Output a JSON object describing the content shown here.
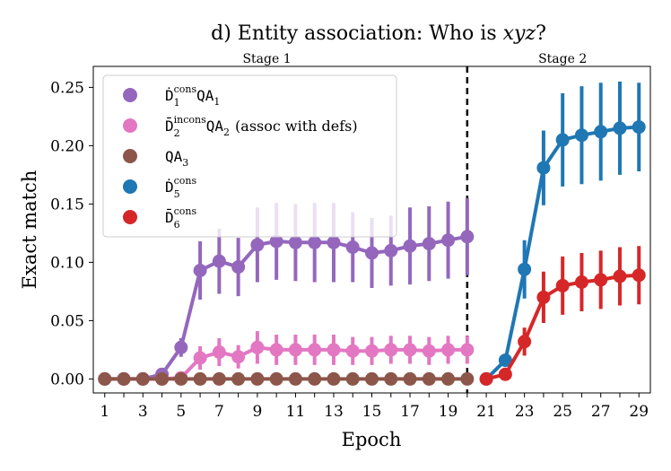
{
  "chart_data": {
    "type": "line",
    "title": "d) Entity association: Who is xyz?",
    "title_prefix": "d) Entity association: Who is ",
    "title_emph": "xyz",
    "title_suffix": "?",
    "xlabel": "Epoch",
    "ylabel": "Exact match",
    "xlim": [
      0.4,
      29.6
    ],
    "ylim": [
      -0.012,
      0.268
    ],
    "xticks": [
      1,
      3,
      5,
      7,
      9,
      11,
      13,
      15,
      17,
      19,
      21,
      23,
      25,
      27,
      29
    ],
    "yticks": [
      0.0,
      0.05,
      0.1,
      0.15,
      0.2,
      0.25
    ],
    "ytick_labels": [
      "0.00",
      "0.05",
      "0.10",
      "0.15",
      "0.20",
      "0.25"
    ],
    "stage_divider_x": 20,
    "stages": [
      {
        "label": "Stage 1",
        "center_x": 9.5
      },
      {
        "label": "Stage 2",
        "center_x": 25.0
      }
    ],
    "legend_position": "top-left",
    "grid": false,
    "series": [
      {
        "key": "d1",
        "legend_main": "Ḋ",
        "legend_sub": "1",
        "legend_sup": "cons",
        "legend_qa": "QA",
        "legend_qa_sub": "1",
        "legend_tail": "",
        "color": "#9467bd",
        "x": [
          1,
          2,
          3,
          4,
          5,
          6,
          7,
          8,
          9,
          10,
          11,
          12,
          13,
          14,
          15,
          16,
          17,
          18,
          19,
          20
        ],
        "y": [
          0.0,
          0.0,
          0.0,
          0.004,
          0.027,
          0.093,
          0.101,
          0.096,
          0.115,
          0.118,
          0.117,
          0.117,
          0.117,
          0.113,
          0.108,
          0.11,
          0.114,
          0.116,
          0.119,
          0.122
        ],
        "err": [
          0,
          0,
          0,
          0.002,
          0.008,
          0.025,
          0.028,
          0.025,
          0.032,
          0.033,
          0.033,
          0.034,
          0.034,
          0.03,
          0.03,
          0.03,
          0.033,
          0.032,
          0.033,
          0.033
        ]
      },
      {
        "key": "d2",
        "legend_main": "D̄",
        "legend_sub": "2",
        "legend_sup": "incons",
        "legend_qa": "QA",
        "legend_qa_sub": "2",
        "legend_tail": "(assoc with defs)",
        "color": "#e377c2",
        "x": [
          1,
          2,
          3,
          4,
          5,
          6,
          7,
          8,
          9,
          10,
          11,
          12,
          13,
          14,
          15,
          16,
          17,
          18,
          19,
          20
        ],
        "y": [
          0.0,
          0.0,
          0.0,
          0.0,
          0.001,
          0.018,
          0.023,
          0.019,
          0.027,
          0.025,
          0.025,
          0.025,
          0.025,
          0.024,
          0.024,
          0.025,
          0.025,
          0.024,
          0.025,
          0.025
        ],
        "err": [
          0,
          0,
          0,
          0,
          0.001,
          0.01,
          0.012,
          0.01,
          0.014,
          0.013,
          0.013,
          0.013,
          0.013,
          0.012,
          0.012,
          0.012,
          0.012,
          0.012,
          0.012,
          0.012
        ]
      },
      {
        "key": "qa3",
        "legend_main": "",
        "legend_sub": "",
        "legend_sup": "",
        "legend_qa": "QA",
        "legend_qa_sub": "3",
        "legend_tail": "",
        "color": "#8c564b",
        "x": [
          1,
          2,
          3,
          4,
          5,
          6,
          7,
          8,
          9,
          10,
          11,
          12,
          13,
          14,
          15,
          16,
          17,
          18,
          19,
          20
        ],
        "y": [
          0,
          0,
          0,
          0,
          0,
          0,
          0,
          0,
          0,
          0,
          0,
          0,
          0,
          0,
          0,
          0,
          0,
          0,
          0,
          0
        ],
        "err": [
          0,
          0,
          0,
          0,
          0,
          0,
          0,
          0,
          0,
          0,
          0,
          0,
          0,
          0,
          0,
          0,
          0,
          0,
          0,
          0
        ]
      },
      {
        "key": "d5",
        "legend_main": "Ḋ",
        "legend_sub": "5",
        "legend_sup": "cons",
        "legend_qa": "",
        "legend_qa_sub": "",
        "legend_tail": "",
        "color": "#1f77b4",
        "x": [
          21,
          22,
          23,
          24,
          25,
          26,
          27,
          28,
          29
        ],
        "y": [
          0.0,
          0.016,
          0.094,
          0.181,
          0.205,
          0.209,
          0.212,
          0.215,
          0.216
        ],
        "err": [
          0,
          0.005,
          0.025,
          0.032,
          0.04,
          0.042,
          0.042,
          0.04,
          0.038
        ]
      },
      {
        "key": "d6",
        "legend_main": "D̄",
        "legend_sub": "6",
        "legend_sup": "cons",
        "legend_qa": "",
        "legend_qa_sub": "",
        "legend_tail": "",
        "color": "#d62728",
        "x": [
          21,
          22,
          23,
          24,
          25,
          26,
          27,
          28,
          29
        ],
        "y": [
          0.0,
          0.004,
          0.032,
          0.07,
          0.08,
          0.083,
          0.085,
          0.088,
          0.089
        ],
        "err": [
          0,
          0.002,
          0.012,
          0.022,
          0.025,
          0.025,
          0.025,
          0.025,
          0.025
        ]
      }
    ]
  }
}
